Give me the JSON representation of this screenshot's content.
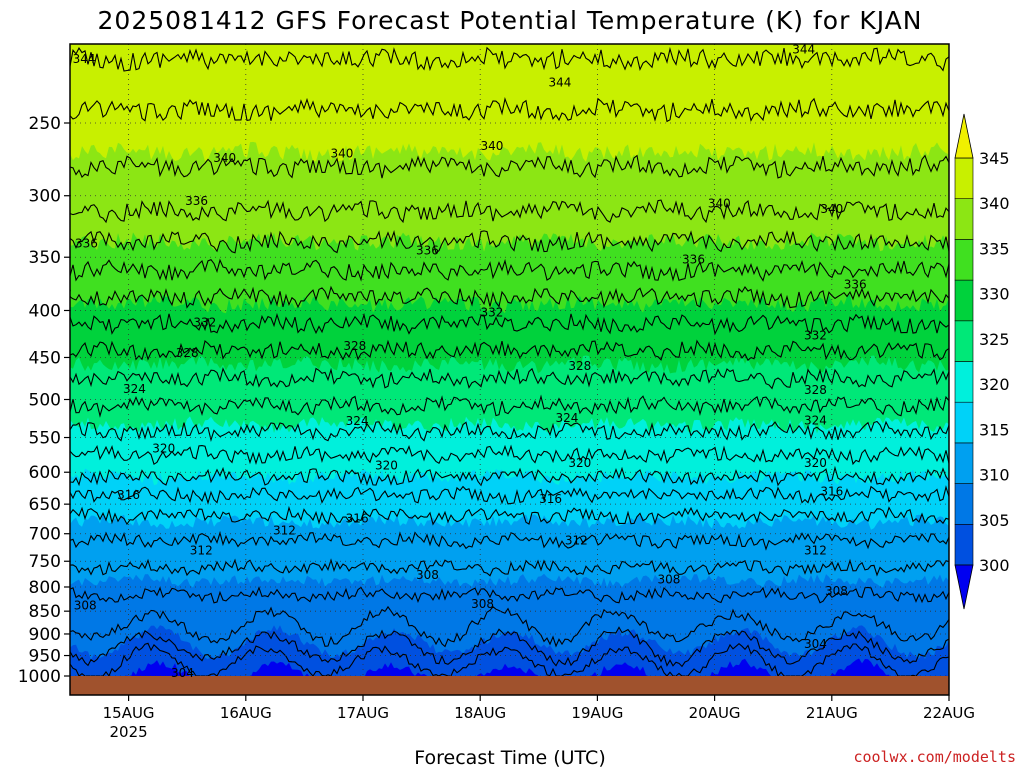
{
  "chart_data": {
    "type": "heatmap",
    "title": "2025081412 GFS Forecast Potential Temperature (K) for KJAN",
    "xlabel": "Forecast Time (UTC)",
    "ylabel": "",
    "x_ticks": [
      {
        "label": "15AUG",
        "sub": "2025",
        "day": 1
      },
      {
        "label": "16AUG",
        "sub": "",
        "day": 2
      },
      {
        "label": "17AUG",
        "sub": "",
        "day": 3
      },
      {
        "label": "18AUG",
        "sub": "",
        "day": 4
      },
      {
        "label": "19AUG",
        "sub": "",
        "day": 5
      },
      {
        "label": "20AUG",
        "sub": "",
        "day": 6
      },
      {
        "label": "21AUG",
        "sub": "",
        "day": 7
      },
      {
        "label": "22AUG",
        "sub": "",
        "day": 8
      }
    ],
    "xlim_days": [
      0.5,
      8
    ],
    "y_axis": {
      "scale": "log",
      "ylim": [
        1000,
        200
      ],
      "reversed": true,
      "ticks": [
        250,
        300,
        350,
        400,
        450,
        500,
        550,
        600,
        650,
        700,
        750,
        800,
        850,
        900,
        950,
        1000
      ]
    },
    "grid": "dotted",
    "colorbar": {
      "placement": "right",
      "levels": [
        300,
        305,
        310,
        315,
        320,
        325,
        330,
        335,
        340,
        345
      ],
      "labels": [
        "300",
        "305",
        "310",
        "315",
        "320",
        "325",
        "330",
        "335",
        "340",
        "345"
      ],
      "colors": [
        "#0000f0",
        "#0050e0",
        "#0078e6",
        "#00a0f0",
        "#00d2f8",
        "#00f0dc",
        "#00e878",
        "#00d23c",
        "#40e020",
        "#8ce614",
        "#c8f000",
        "#f0f000"
      ],
      "extend": "both"
    },
    "profile": [
      {
        "p": 1000,
        "theta": 300
      },
      {
        "p": 950,
        "theta": 303
      },
      {
        "p": 900,
        "theta": 305.5
      },
      {
        "p": 850,
        "theta": 307
      },
      {
        "p": 800,
        "theta": 308.5
      },
      {
        "p": 750,
        "theta": 310.5
      },
      {
        "p": 700,
        "theta": 312.5
      },
      {
        "p": 650,
        "theta": 315
      },
      {
        "p": 600,
        "theta": 318.5
      },
      {
        "p": 550,
        "theta": 321.5
      },
      {
        "p": 500,
        "theta": 324.5
      },
      {
        "p": 450,
        "theta": 327.5
      },
      {
        "p": 400,
        "theta": 331
      },
      {
        "p": 350,
        "theta": 335
      },
      {
        "p": 300,
        "theta": 339
      },
      {
        "p": 250,
        "theta": 341.5
      },
      {
        "p": 200,
        "theta": 345
      }
    ],
    "contour_levels": [
      302,
      304,
      306,
      308,
      310,
      312,
      314,
      316,
      318,
      320,
      322,
      324,
      326,
      328,
      330,
      332,
      334,
      336,
      338,
      340,
      342,
      344
    ],
    "contour_labels": [
      {
        "text": "344",
        "day": 0.62,
        "p": 213
      },
      {
        "text": "344",
        "day": 6.76,
        "p": 208
      },
      {
        "text": "344",
        "day": 4.68,
        "p": 226
      },
      {
        "text": "340",
        "day": 1.82,
        "p": 273
      },
      {
        "text": "340",
        "day": 2.82,
        "p": 270
      },
      {
        "text": "340",
        "day": 4.1,
        "p": 265
      },
      {
        "text": "340",
        "day": 6.04,
        "p": 306
      },
      {
        "text": "340",
        "day": 7.0,
        "p": 310
      },
      {
        "text": "336",
        "day": 1.58,
        "p": 304
      },
      {
        "text": "336",
        "day": 0.64,
        "p": 338
      },
      {
        "text": "336",
        "day": 3.55,
        "p": 344
      },
      {
        "text": "336",
        "day": 5.82,
        "p": 352
      },
      {
        "text": "336",
        "day": 7.2,
        "p": 375
      },
      {
        "text": "332",
        "day": 0.42,
        "p": 383
      },
      {
        "text": "332",
        "day": 1.65,
        "p": 412
      },
      {
        "text": "332",
        "day": 4.1,
        "p": 402
      },
      {
        "text": "332",
        "day": 6.86,
        "p": 426
      },
      {
        "text": "328",
        "day": 1.5,
        "p": 445
      },
      {
        "text": "328",
        "day": 2.93,
        "p": 437
      },
      {
        "text": "328",
        "day": 4.85,
        "p": 460
      },
      {
        "text": "328",
        "day": 6.86,
        "p": 488
      },
      {
        "text": "324",
        "day": 1.05,
        "p": 487
      },
      {
        "text": "324",
        "day": 2.95,
        "p": 528
      },
      {
        "text": "324",
        "day": 4.74,
        "p": 524
      },
      {
        "text": "324",
        "day": 6.86,
        "p": 527
      },
      {
        "text": "320",
        "day": 1.3,
        "p": 565
      },
      {
        "text": "320",
        "day": 3.2,
        "p": 590
      },
      {
        "text": "320",
        "day": 4.85,
        "p": 586
      },
      {
        "text": "320",
        "day": 6.86,
        "p": 586
      },
      {
        "text": "316",
        "day": 1.0,
        "p": 635
      },
      {
        "text": "316",
        "day": 2.95,
        "p": 674
      },
      {
        "text": "316",
        "day": 4.6,
        "p": 642
      },
      {
        "text": "316",
        "day": 7.0,
        "p": 630
      },
      {
        "text": "312",
        "day": 2.33,
        "p": 694
      },
      {
        "text": "312",
        "day": 1.62,
        "p": 730
      },
      {
        "text": "312",
        "day": 4.82,
        "p": 712
      },
      {
        "text": "312",
        "day": 6.86,
        "p": 730
      },
      {
        "text": "308",
        "day": 3.55,
        "p": 776
      },
      {
        "text": "308",
        "day": 0.63,
        "p": 838
      },
      {
        "text": "308",
        "day": 4.02,
        "p": 835
      },
      {
        "text": "308",
        "day": 5.61,
        "p": 785
      },
      {
        "text": "308",
        "day": 7.04,
        "p": 808
      },
      {
        "text": "304",
        "day": 6.86,
        "p": 923
      },
      {
        "text": "304",
        "day": 1.46,
        "p": 993
      }
    ],
    "ground_color": "#a0522d"
  },
  "credit": "coolwx.com/modelts"
}
